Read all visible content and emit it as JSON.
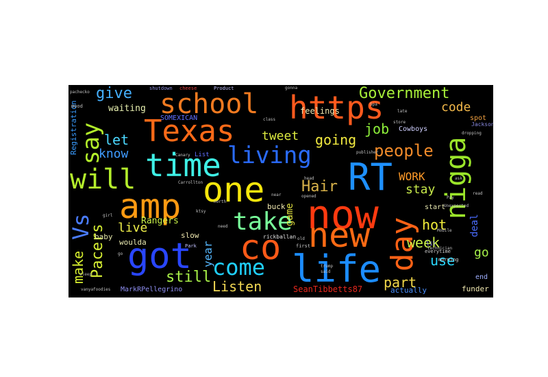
{
  "title": "",
  "words": [
    {
      "text": "https",
      "color": "#ff5a1e",
      "size": 46,
      "vertical": false
    },
    {
      "text": "Texas",
      "color": "#ff6a18",
      "size": 44,
      "vertical": false
    },
    {
      "text": "school",
      "color": "#f07a20",
      "size": 40,
      "vertical": false
    },
    {
      "text": "time",
      "color": "#3ff0e6",
      "size": 46,
      "vertical": false
    },
    {
      "text": "living",
      "color": "#2a6cff",
      "size": 34,
      "vertical": false
    },
    {
      "text": "RT",
      "color": "#1e90ff",
      "size": 54,
      "vertical": false
    },
    {
      "text": "nigga",
      "color": "#9be52a",
      "size": 40,
      "vertical": true
    },
    {
      "text": "one",
      "color": "#f5e60c",
      "size": 50,
      "vertical": false
    },
    {
      "text": "amp",
      "color": "#ff9a12",
      "size": 50,
      "vertical": false
    },
    {
      "text": "will",
      "color": "#b4ef2c",
      "size": 40,
      "vertical": false
    },
    {
      "text": "say",
      "color": "#b2ee2a",
      "size": 34,
      "vertical": true
    },
    {
      "text": "now",
      "color": "#ff3a10",
      "size": 58,
      "vertical": false
    },
    {
      "text": "new",
      "color": "#ff6a14",
      "size": 50,
      "vertical": false
    },
    {
      "text": "day",
      "color": "#ff6216",
      "size": 44,
      "vertical": true
    },
    {
      "text": "got",
      "color": "#2946ff",
      "size": 52,
      "vertical": false
    },
    {
      "text": "co",
      "color": "#ff5a18",
      "size": 50,
      "vertical": false
    },
    {
      "text": "life",
      "color": "#1c8cff",
      "size": 54,
      "vertical": false
    },
    {
      "text": "take",
      "color": "#78ff9a",
      "size": 36,
      "vertical": false
    },
    {
      "text": "come",
      "color": "#20d0ff",
      "size": 32,
      "vertical": false
    },
    {
      "text": "Vs",
      "color": "#4a7cff",
      "size": 32,
      "vertical": true
    },
    {
      "text": "Pacers",
      "color": "#d7f034",
      "size": 22,
      "vertical": true
    },
    {
      "text": "make",
      "color": "#d6ee2e",
      "size": 20,
      "vertical": true
    },
    {
      "text": "Government",
      "color": "#a8f03a",
      "size": 22,
      "vertical": false
    },
    {
      "text": "people",
      "color": "#f08a2a",
      "size": 24,
      "vertical": false
    },
    {
      "text": "give",
      "color": "#45b0ff",
      "size": 22,
      "vertical": false
    },
    {
      "text": "let",
      "color": "#4bd8ff",
      "size": 20,
      "vertical": false
    },
    {
      "text": "know",
      "color": "#3f9bff",
      "size": 18,
      "vertical": false
    },
    {
      "text": "going",
      "color": "#f2ea40",
      "size": 20,
      "vertical": false
    },
    {
      "text": "tweet",
      "color": "#dcea40",
      "size": 18,
      "vertical": false
    },
    {
      "text": "Hair",
      "color": "#d8b24a",
      "size": 22,
      "vertical": false
    },
    {
      "text": "job",
      "color": "#8ef03a",
      "size": 20,
      "vertical": false
    },
    {
      "text": "code",
      "color": "#f2b84a",
      "size": 18,
      "vertical": false
    },
    {
      "text": "WORK",
      "color": "#ff9a28",
      "size": 16,
      "vertical": false
    },
    {
      "text": "stay",
      "color": "#c6e84a",
      "size": 18,
      "vertical": false
    },
    {
      "text": "hot",
      "color": "#f2ee3a",
      "size": 20,
      "vertical": false
    },
    {
      "text": "week",
      "color": "#c8f048",
      "size": 20,
      "vertical": false
    },
    {
      "text": "go",
      "color": "#a6f04a",
      "size": 18,
      "vertical": false
    },
    {
      "text": "part",
      "color": "#f2d84a",
      "size": 20,
      "vertical": false
    },
    {
      "text": "use",
      "color": "#2ad8ff",
      "size": 20,
      "vertical": false
    },
    {
      "text": "still",
      "color": "#a8f048",
      "size": 22,
      "vertical": false
    },
    {
      "text": "Listen",
      "color": "#f2d854",
      "size": 20,
      "vertical": false
    },
    {
      "text": "live",
      "color": "#f0f04a",
      "size": 18,
      "vertical": false
    },
    {
      "text": "year",
      "color": "#56b8ff",
      "size": 16,
      "vertical": true
    },
    {
      "text": "game",
      "color": "#e0e040",
      "size": 14,
      "vertical": true
    },
    {
      "text": "deal",
      "color": "#4a6cff",
      "size": 14,
      "vertical": true
    },
    {
      "text": "Rangers",
      "color": "#c8f048",
      "size": 13,
      "vertical": false
    },
    {
      "text": "waiting",
      "color": "#e8f0b0",
      "size": 13,
      "vertical": false
    },
    {
      "text": "feelings",
      "color": "#f0e8b0",
      "size": 12,
      "vertical": false
    },
    {
      "text": "SOMEXICAN",
      "color": "#6070ff",
      "size": 10,
      "vertical": false
    },
    {
      "text": "Registration",
      "color": "#3a9cff",
      "size": 11,
      "vertical": true
    },
    {
      "text": "baby",
      "color": "#e0e2a6",
      "size": 11,
      "vertical": false
    },
    {
      "text": "buck",
      "color": "#f0e8b0",
      "size": 11,
      "vertical": false
    },
    {
      "text": "slow",
      "color": "#f0e8b0",
      "size": 11,
      "vertical": false
    },
    {
      "text": "woulda",
      "color": "#e8e8b0",
      "size": 11,
      "vertical": false
    },
    {
      "text": "start",
      "color": "#e8e8b0",
      "size": 10,
      "vertical": false
    },
    {
      "text": "end",
      "color": "#a0b0ff",
      "size": 10,
      "vertical": false
    },
    {
      "text": "funder",
      "color": "#f0e8b0",
      "size": 11,
      "vertical": false
    },
    {
      "text": "actually",
      "color": "#4a90ff",
      "size": 11,
      "vertical": false
    },
    {
      "text": "SeanTibbetts87",
      "color": "#e8281e",
      "size": 12,
      "vertical": false
    },
    {
      "text": "MarkRPellegrino",
      "color": "#8e8ef0",
      "size": 10,
      "vertical": false
    },
    {
      "text": "Cowboys",
      "color": "#d0d0ff",
      "size": 10,
      "vertical": false
    },
    {
      "text": "List",
      "color": "#6070ff",
      "size": 9,
      "vertical": false
    },
    {
      "text": "spot",
      "color": "#f0a040",
      "size": 10,
      "vertical": false
    },
    {
      "text": "Jackson",
      "color": "#8a8ae0",
      "size": 8,
      "vertical": false
    },
    {
      "text": "lil",
      "color": "#a0a0ff",
      "size": 8,
      "vertical": false
    },
    {
      "text": "rickballan",
      "color": "#e0e0e0",
      "size": 8,
      "vertical": false
    },
    {
      "text": "Park",
      "color": "#c0c0ff",
      "size": 7,
      "vertical": false
    },
    {
      "text": "first",
      "color": "#c8c8c8",
      "size": 7,
      "vertical": false
    },
    {
      "text": "everytime",
      "color": "#d0d0d0",
      "size": 7,
      "vertical": false
    },
    {
      "text": "morning",
      "color": "#d0d0d0",
      "size": 7,
      "vertical": false
    },
    {
      "text": "Product",
      "color": "#c0c0ff",
      "size": 7,
      "vertical": false
    },
    {
      "text": "shutdown",
      "color": "#9090e0",
      "size": 7,
      "vertical": false
    },
    {
      "text": "cheese",
      "color": "#e04040",
      "size": 7,
      "vertical": false
    },
    {
      "text": "mood",
      "color": "#c0c0c0",
      "size": 7,
      "vertical": false
    },
    {
      "text": "north",
      "color": "#c0c0c0",
      "size": 6,
      "vertical": false
    },
    {
      "text": "trump",
      "color": "#c0c0c0",
      "size": 6,
      "vertical": false
    },
    {
      "text": "said",
      "color": "#c0c0c0",
      "size": 6,
      "vertical": false
    },
    {
      "text": "near",
      "color": "#c0c0c0",
      "size": 6,
      "vertical": false
    },
    {
      "text": "head",
      "color": "#c0c0c0",
      "size": 6,
      "vertical": false
    },
    {
      "text": "opened",
      "color": "#c0c0c0",
      "size": 6,
      "vertical": false
    },
    {
      "text": "sleep",
      "color": "#b0b0b0",
      "size": 6,
      "vertical": false
    },
    {
      "text": "dropping",
      "color": "#c0c0c0",
      "size": 6,
      "vertical": false
    },
    {
      "text": "read",
      "color": "#c0c0c0",
      "size": 6,
      "vertical": false
    },
    {
      "text": "publisher",
      "color": "#c0c0c0",
      "size": 6,
      "vertical": false
    },
    {
      "text": "store",
      "color": "#c0c0c0",
      "size": 6,
      "vertical": false
    },
    {
      "text": "class",
      "color": "#c0c0c0",
      "size": 6,
      "vertical": false
    },
    {
      "text": "gonna",
      "color": "#c0c0c0",
      "size": 6,
      "vertical": false
    },
    {
      "text": "ktsy",
      "color": "#c0c0c0",
      "size": 6,
      "vertical": false
    },
    {
      "text": "need",
      "color": "#c0c0c0",
      "size": 6,
      "vertical": false
    },
    {
      "text": "Canary",
      "color": "#c0c0c0",
      "size": 6,
      "vertical": false
    },
    {
      "text": "girl",
      "color": "#c0c0c0",
      "size": 6,
      "vertical": false
    },
    {
      "text": "pachecko",
      "color": "#c0c0c0",
      "size": 6,
      "vertical": false
    },
    {
      "text": "vanyafoodies",
      "color": "#c0c0c0",
      "size": 6,
      "vertical": false
    },
    {
      "text": "old",
      "color": "#c0c0c0",
      "size": 6,
      "vertical": false
    },
    {
      "text": "technician",
      "color": "#c0c0c0",
      "size": 6,
      "vertical": false
    },
    {
      "text": "Spa",
      "color": "#c0c0c0",
      "size": 6,
      "vertical": false
    },
    {
      "text": "Unexpected",
      "color": "#c0c0c0",
      "size": 6,
      "vertical": false
    },
    {
      "text": "Mobile",
      "color": "#c0c0c0",
      "size": 6,
      "vertical": false
    },
    {
      "text": "go",
      "color": "#c0c0c0",
      "size": 6,
      "vertical": false
    },
    {
      "text": "late",
      "color": "#c0c0c0",
      "size": 6,
      "vertical": false
    },
    {
      "text": "Carrollton",
      "color": "#c0c0c0",
      "size": 6,
      "vertical": false
    },
    {
      "text": "Pay",
      "color": "#c0c0c0",
      "size": 6,
      "vertical": false
    },
    {
      "text": "ask",
      "color": "#c0c0c0",
      "size": 6,
      "vertical": false
    }
  ]
}
